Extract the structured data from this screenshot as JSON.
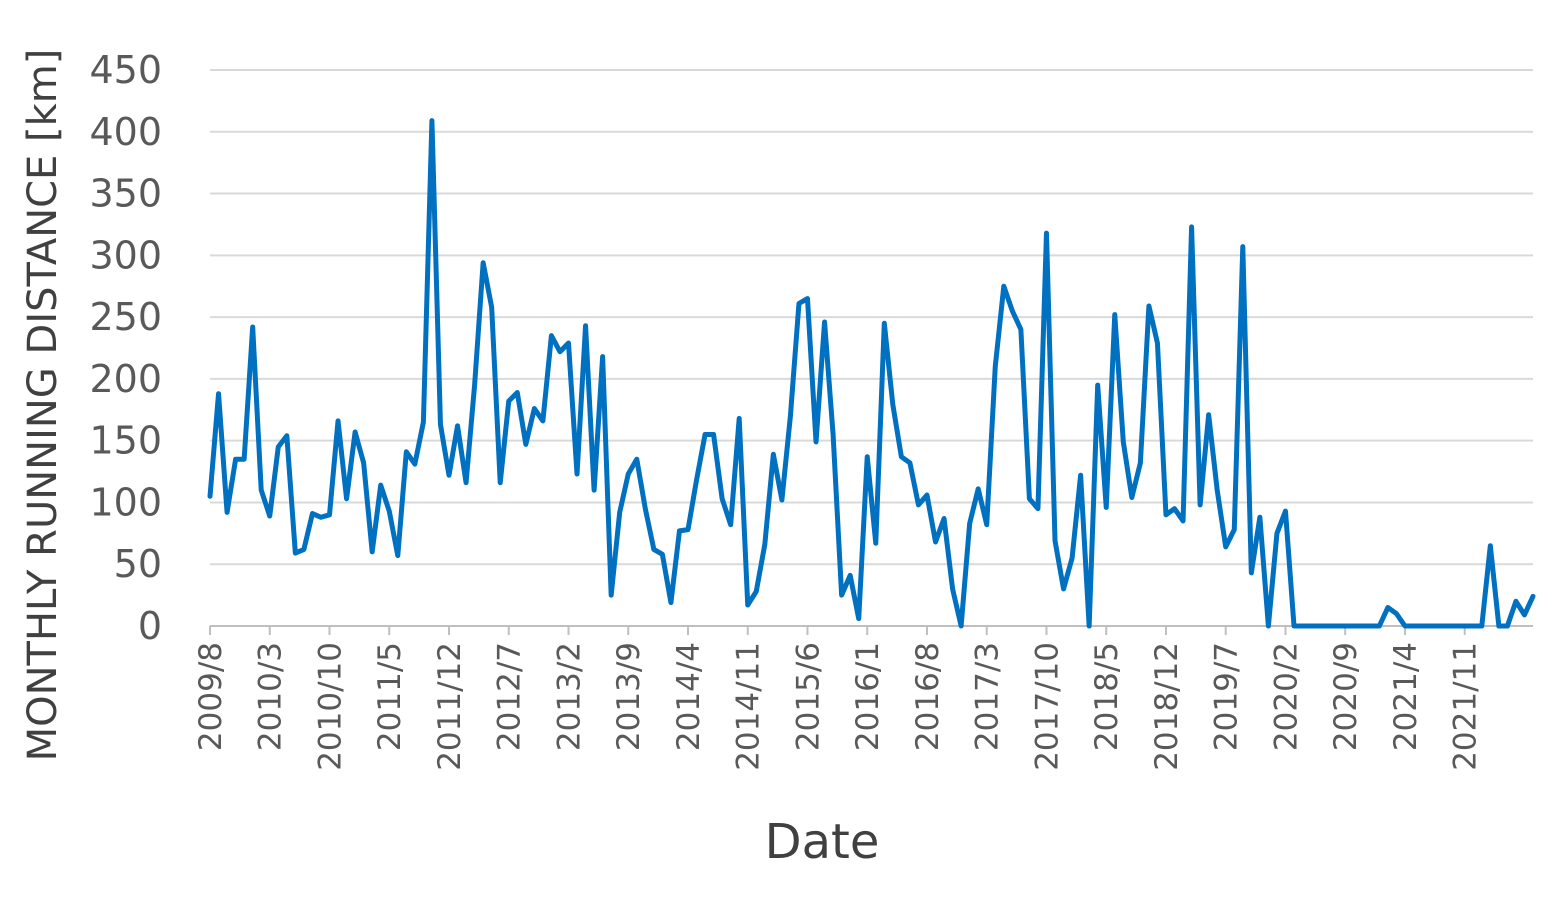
{
  "chart_data": {
    "type": "line",
    "xlabel": "Date",
    "ylabel": "MONTHLY RUNNING DISTANCE [km]",
    "ylim": [
      0,
      450
    ],
    "y_ticks": [
      0,
      50,
      100,
      150,
      200,
      250,
      300,
      350,
      400,
      450
    ],
    "x_start": "2009/8",
    "x_end": "2021/12",
    "x_tick_labels": [
      "2009/8",
      "2010/3",
      "2010/10",
      "2011/5",
      "2011/12",
      "2012/7",
      "2013/2",
      "2013/9",
      "2014/4",
      "2014/11",
      "2015/6",
      "2016/1",
      "2016/8",
      "2017/3",
      "2017/10",
      "2018/5",
      "2018/12",
      "2019/7",
      "2020/2",
      "2020/9",
      "2021/4",
      "2021/11"
    ],
    "grid": true,
    "legend": "none",
    "series": [
      {
        "color": "#0070c0",
        "values": [
          105,
          188,
          92,
          135,
          135,
          242,
          110,
          89,
          145,
          154,
          59,
          62,
          91,
          88,
          90,
          166,
          103,
          157,
          132,
          60,
          114,
          93,
          57,
          141,
          131,
          165,
          409,
          163,
          122,
          162,
          116,
          195,
          294,
          258,
          116,
          182,
          189,
          147,
          176,
          166,
          235,
          222,
          229,
          123,
          243,
          110,
          218,
          25,
          92,
          123,
          135,
          95,
          62,
          58,
          19,
          77,
          78,
          118,
          155,
          155,
          103,
          82,
          168,
          17,
          28,
          66,
          139,
          102,
          170,
          261,
          265,
          149,
          246,
          155,
          25,
          41,
          6,
          137,
          67,
          245,
          179,
          137,
          132,
          98,
          106,
          68,
          87,
          30,
          0,
          83,
          111,
          82,
          210,
          275,
          255,
          240,
          103,
          95,
          318,
          69,
          30,
          55,
          122,
          0,
          195,
          96,
          252,
          149,
          104,
          132,
          259,
          229,
          90,
          95,
          85,
          323,
          98,
          171,
          110,
          64,
          78,
          307,
          43,
          88,
          0,
          75,
          93,
          0,
          0,
          0,
          0,
          0,
          0,
          0,
          0,
          0,
          0,
          0,
          15,
          10,
          0,
          0,
          0,
          0,
          0,
          0,
          0,
          0,
          0,
          0,
          65,
          0,
          0,
          20,
          9,
          24
        ]
      }
    ]
  }
}
